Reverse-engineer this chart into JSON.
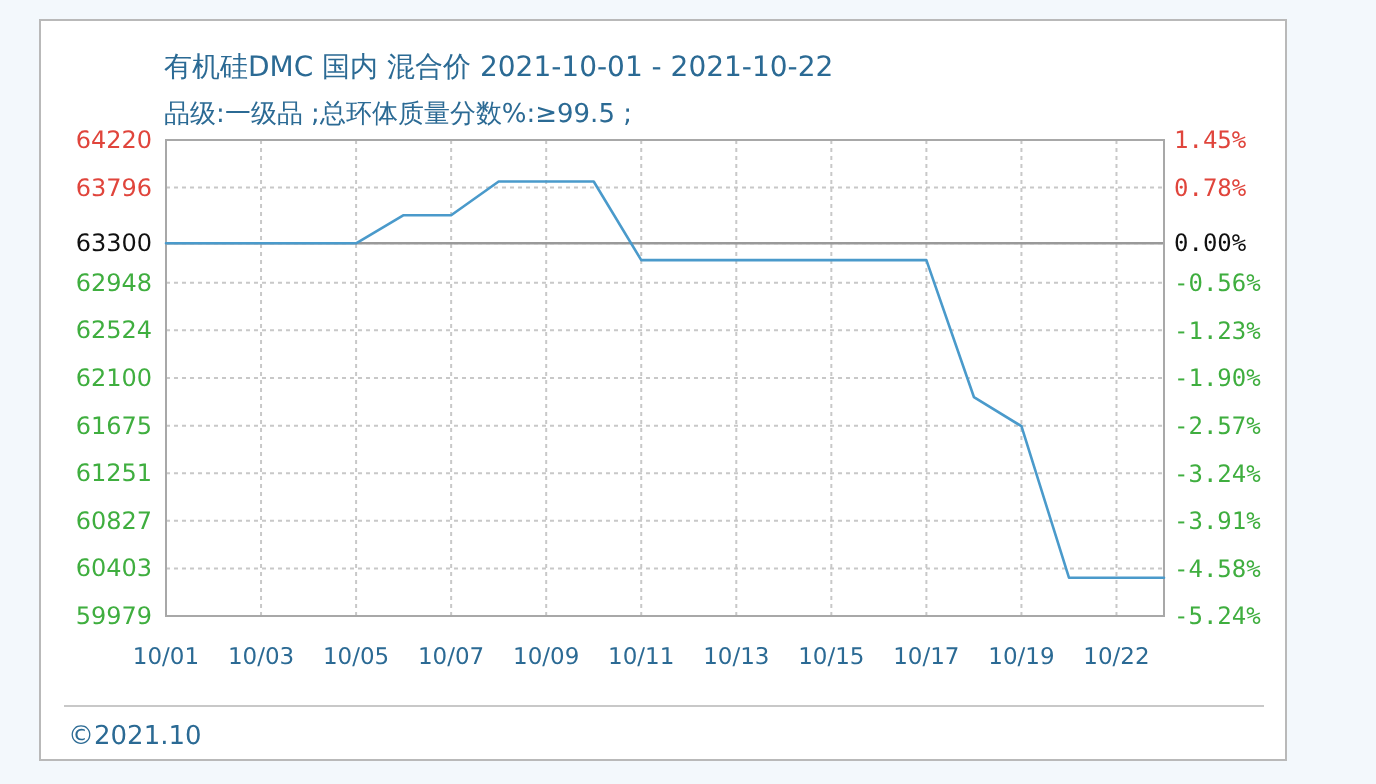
{
  "chart_data": {
    "type": "line",
    "title": "有机硅DMC 国内 混合价 2021-10-01 - 2021-10-22",
    "subtitle": "品级:一级品 ;总环体质量分数%:≥99.5 ;",
    "categories": [
      "10/01",
      null,
      "10/03",
      null,
      "10/05",
      null,
      "10/07",
      null,
      "10/09",
      null,
      "10/11",
      null,
      "10/13",
      null,
      "10/15",
      null,
      "10/17",
      null,
      "10/19",
      null,
      "10/22",
      null
    ],
    "series": [
      {
        "color": "#4a9acb",
        "values": [
          63300,
          63300,
          63300,
          63300,
          63300,
          63550,
          63550,
          63850,
          63850,
          63850,
          63150,
          63150,
          63150,
          63150,
          63150,
          63150,
          63150,
          61930,
          61670,
          60320,
          60320,
          60320
        ]
      }
    ],
    "ylim": [
      59979,
      64220
    ],
    "yticks": [
      59979,
      60403,
      60827,
      61251,
      61675,
      62100,
      62524,
      62948,
      63300,
      63796,
      64220
    ],
    "y2lim": [
      -5.24,
      1.45
    ],
    "y2ticks": [
      {
        "value": -5.24,
        "label": "-5.24%"
      },
      {
        "value": -4.58,
        "label": "-4.58%"
      },
      {
        "value": -3.91,
        "label": "-3.91%"
      },
      {
        "value": -3.24,
        "label": "-3.24%"
      },
      {
        "value": -2.57,
        "label": "-2.57%"
      },
      {
        "value": -1.9,
        "label": "-1.90%"
      },
      {
        "value": -1.23,
        "label": "-1.23%"
      },
      {
        "value": -0.56,
        "label": "-0.56%"
      },
      {
        "value": 0,
        "label": "0.00%"
      },
      {
        "value": 0.78,
        "label": "0.78%"
      },
      {
        "value": 1.45,
        "label": "1.45%"
      }
    ],
    "grid": true,
    "ref_lines": [
      {
        "axis": "y",
        "value": 63300
      }
    ],
    "annotations": [
      "©2021.10"
    ]
  }
}
